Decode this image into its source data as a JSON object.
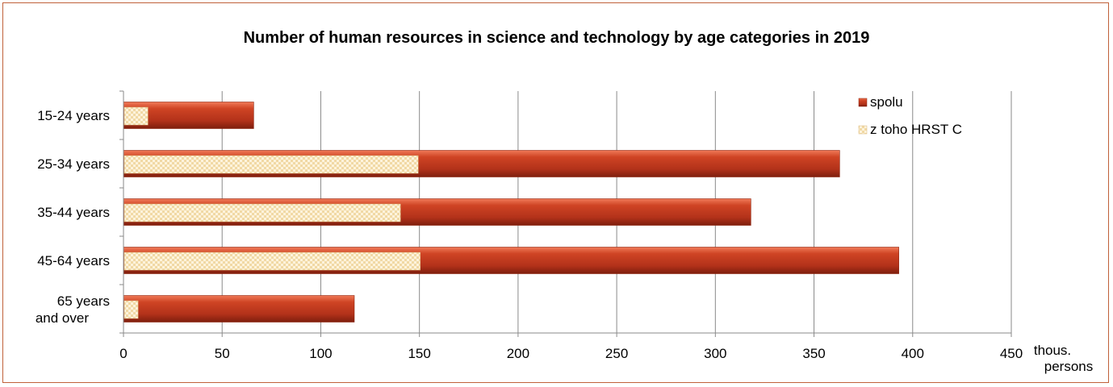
{
  "chart_data": {
    "type": "bar",
    "orientation": "horizontal",
    "title": "Number of human resources in science and technology by age categories in 2019",
    "categories": [
      "15-24 years",
      "25-34 years",
      "35-44 years",
      "45-64 years",
      "65 years and over"
    ],
    "series": [
      {
        "name": "spolu",
        "values": [
          66,
          363,
          318,
          393,
          117
        ],
        "color": "#c0391b"
      },
      {
        "name": "z toho HRST C",
        "values": [
          12,
          149,
          140,
          150,
          7
        ],
        "color": "#fbeccb"
      }
    ],
    "x_ticks": [
      "0",
      "50",
      "100",
      "150",
      "200",
      "250",
      "300",
      "350",
      "400",
      "450"
    ],
    "xlim": [
      0,
      450
    ],
    "unit_label": [
      "thous.",
      "persons"
    ],
    "grid": true,
    "legend_position": "top-right"
  }
}
